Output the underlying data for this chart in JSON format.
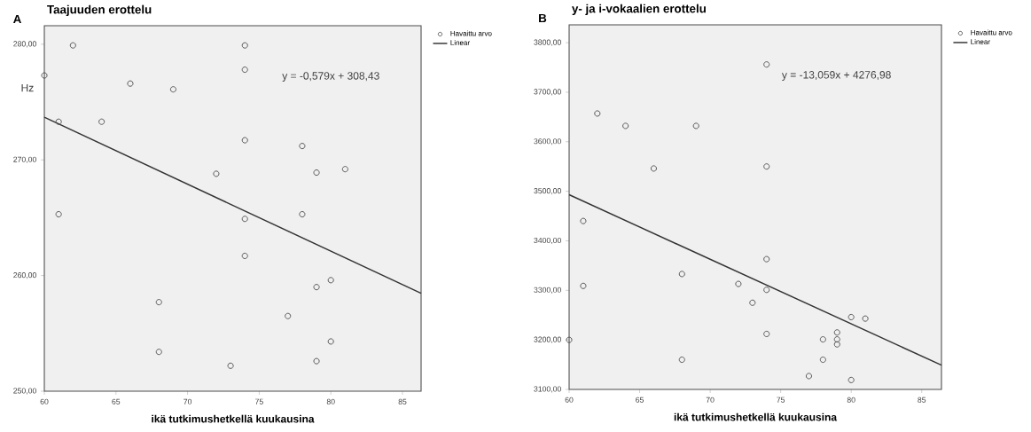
{
  "chart_data": [
    {
      "type": "scatter",
      "title": "Taajuuden erottelu",
      "xlabel": "ikä tutkimushetkellä kuukausina",
      "ylabel": "Hz",
      "annotations": [
        "A",
        "y = -0,579x + 308,43"
      ],
      "xlim": [
        60,
        86.3
      ],
      "ylim": [
        250,
        281.6
      ],
      "xticks": [
        60,
        65,
        70,
        75,
        80,
        85
      ],
      "yticks": [
        {
          "value": 250,
          "label": "250,00"
        },
        {
          "value": 260,
          "label": "260,00"
        },
        {
          "value": 270,
          "label": "270,00"
        },
        {
          "value": 280,
          "label": "280,00"
        }
      ],
      "legend": "top right",
      "series": [
        {
          "name": "Havaittu arvo",
          "marker": "circle",
          "color": "#505050",
          "x": [
            60,
            62,
            74,
            74,
            66,
            69,
            61,
            64,
            74,
            78,
            72,
            79,
            81,
            61,
            74,
            78,
            74,
            80,
            79,
            68,
            77,
            80,
            68,
            79,
            73
          ],
          "values": [
            277.3,
            279.9,
            279.9,
            277.8,
            276.6,
            276.1,
            273.3,
            273.3,
            271.7,
            271.2,
            268.8,
            268.9,
            269.2,
            265.3,
            264.9,
            265.3,
            261.7,
            259.6,
            259.0,
            257.7,
            256.5,
            254.3,
            253.4,
            252.6,
            252.2
          ]
        },
        {
          "name": "Linear",
          "type": "line",
          "color": "#333333",
          "x": [
            60,
            86.3
          ],
          "values": [
            273.69,
            258.46
          ]
        }
      ]
    },
    {
      "type": "scatter",
      "title": "y- ja i-vokaalien erottelu",
      "xlabel": "ikä tutkimushetkellä kuukausina",
      "annotations": [
        "B",
        "y = -13,059x + 4276,98"
      ],
      "xlim": [
        60,
        86.4
      ],
      "ylim": [
        3100,
        3836
      ],
      "xticks": [
        60,
        65,
        70,
        75,
        80,
        85
      ],
      "yticks": [
        {
          "value": 3100,
          "label": "3100,00"
        },
        {
          "value": 3200,
          "label": "3200,00"
        },
        {
          "value": 3300,
          "label": "3300,00"
        },
        {
          "value": 3400,
          "label": "3400,00"
        },
        {
          "value": 3500,
          "label": "3500,00"
        },
        {
          "value": 3600,
          "label": "3600,00"
        },
        {
          "value": 3700,
          "label": "3700,00"
        },
        {
          "value": 3800,
          "label": "3800,00"
        }
      ],
      "legend": "top right",
      "series": [
        {
          "name": "Havaittu arvo",
          "marker": "circle",
          "color": "#505050",
          "x": [
            74,
            62,
            64,
            69,
            66,
            74,
            61,
            61,
            60,
            74,
            68,
            72,
            74,
            73,
            80,
            81,
            74,
            79,
            79,
            79,
            78,
            78,
            68,
            77,
            80
          ],
          "values": [
            3756,
            3657,
            3632,
            3632,
            3546,
            3550,
            3440,
            3309,
            3200,
            3363,
            3333,
            3313,
            3301,
            3275,
            3246,
            3243,
            3212,
            3215,
            3201,
            3191,
            3201,
            3160,
            3160,
            3127,
            3119
          ]
        },
        {
          "name": "Linear",
          "type": "line",
          "color": "#333333",
          "x": [
            60,
            86.4
          ],
          "values": [
            3493,
            3149
          ]
        }
      ]
    }
  ]
}
